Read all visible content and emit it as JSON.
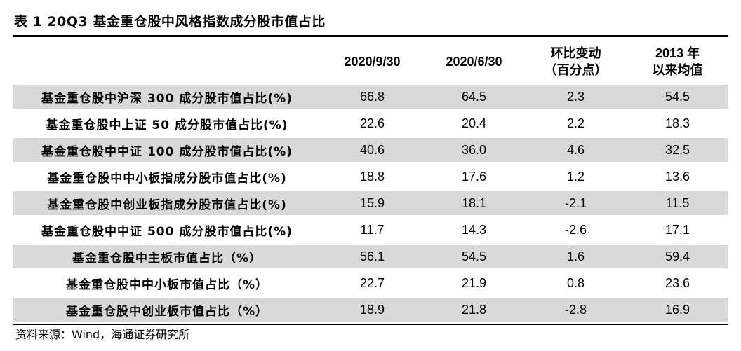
{
  "title": "表 1 20Q3 基金重仓股中风格指数成分股市值占比",
  "columns": {
    "label": "",
    "c1": "2020/9/30",
    "c2": "2020/6/30",
    "c3_line1": "环比变动",
    "c3_line2": "（百分点）",
    "c4_line1": "2013 年",
    "c4_line2": "以来均值"
  },
  "rows": [
    {
      "label": "基金重仓股中沪深 300 成分股市值占比(%)",
      "v1": "66.8",
      "v2": "64.5",
      "v3": "2.3",
      "v4": "54.5"
    },
    {
      "label": "基金重仓股中上证 50 成分股市值占比(%)",
      "v1": "22.6",
      "v2": "20.4",
      "v3": "2.2",
      "v4": "18.3"
    },
    {
      "label": "基金重仓股中中证 100 成分股市值占比(%)",
      "v1": "40.6",
      "v2": "36.0",
      "v3": "4.6",
      "v4": "32.5"
    },
    {
      "label": "基金重仓股中中小板指成分股市值占比(%)",
      "v1": "18.8",
      "v2": "17.6",
      "v3": "1.2",
      "v4": "13.6"
    },
    {
      "label": "基金重仓股中创业板指成分股市值占比(%)",
      "v1": "15.9",
      "v2": "18.1",
      "v3": "-2.1",
      "v4": "11.5"
    },
    {
      "label": "基金重仓股中中证 500 成分股市值占比(%)",
      "v1": "11.7",
      "v2": "14.3",
      "v3": "-2.6",
      "v4": "17.1"
    },
    {
      "label": "基金重仓股中主板市值占比（%）",
      "v1": "56.1",
      "v2": "54.5",
      "v3": "1.6",
      "v4": "59.4"
    },
    {
      "label": "基金重仓股中中小板市值占比（%）",
      "v1": "22.7",
      "v2": "21.9",
      "v3": "0.8",
      "v4": "23.6"
    },
    {
      "label": "基金重仓股中创业板市值占比（%）",
      "v1": "18.9",
      "v2": "21.8",
      "v3": "-2.8",
      "v4": "16.9"
    }
  ],
  "source": "资料来源：Wind，海通证券研究所",
  "colors": {
    "shade": "#d9d9d9",
    "text": "#000000"
  }
}
